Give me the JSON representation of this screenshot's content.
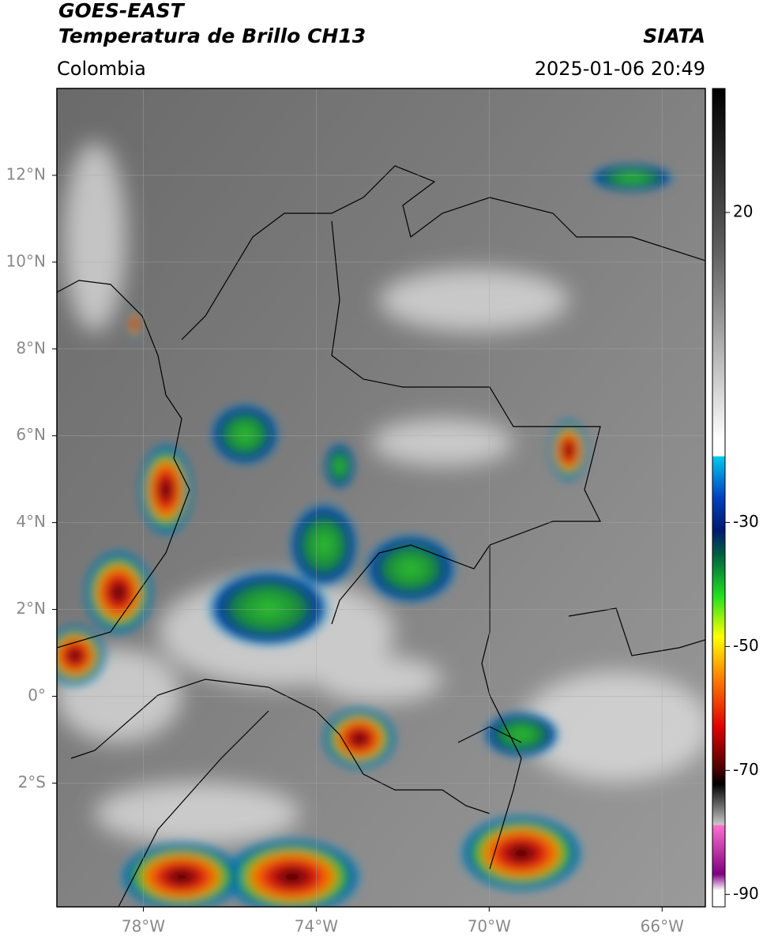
{
  "header": {
    "title": "GOES-EAST",
    "subtitle": "Temperatura de Brillo CH13",
    "source": "SIATA",
    "region": "Colombia",
    "datetime": "2025-01-06 20:49"
  },
  "map": {
    "xlim": [
      -80,
      -65
    ],
    "ylim": [
      -4.85,
      14
    ],
    "xticks": [
      {
        "value": -78,
        "label": "78°W"
      },
      {
        "value": -74,
        "label": "74°W"
      },
      {
        "value": -70,
        "label": "70°W"
      },
      {
        "value": -66,
        "label": "66°W"
      }
    ],
    "yticks": [
      {
        "value": 12,
        "label": "12°N"
      },
      {
        "value": 10,
        "label": "10°N"
      },
      {
        "value": 8,
        "label": "8°N"
      },
      {
        "value": 6,
        "label": "6°N"
      },
      {
        "value": 4,
        "label": "4°N"
      },
      {
        "value": 2,
        "label": "2°N"
      },
      {
        "value": 0,
        "label": "0°"
      },
      {
        "value": -2,
        "label": "2°S"
      }
    ],
    "grid": true
  },
  "colorbar": {
    "lim": [
      40,
      -92
    ],
    "ticks": [
      20,
      -30,
      -50,
      -70,
      -90
    ]
  }
}
